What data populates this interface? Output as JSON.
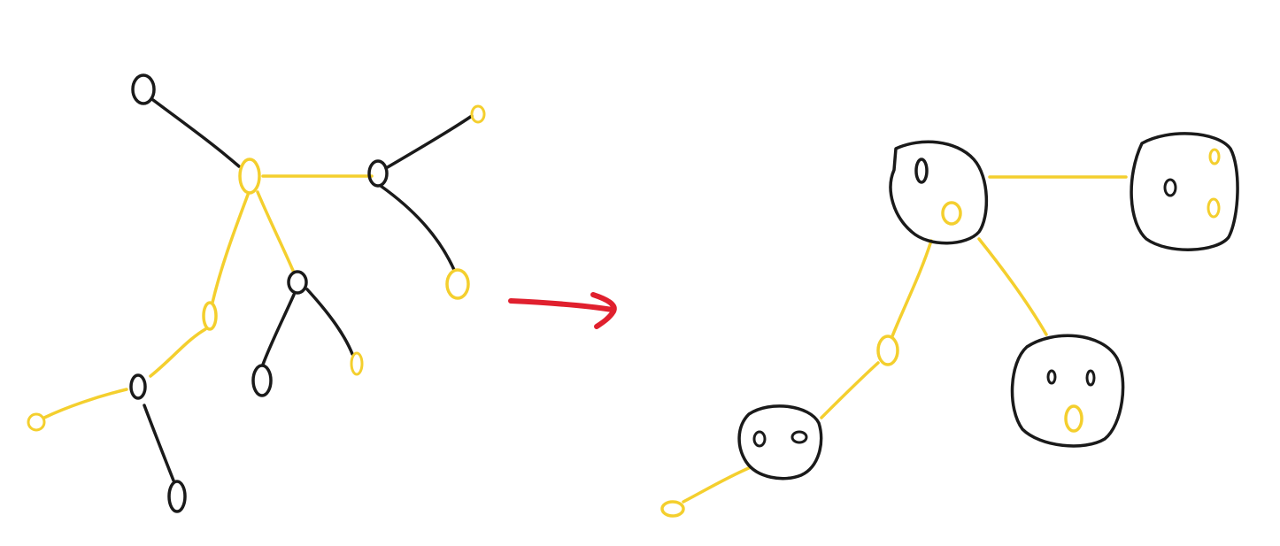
{
  "colors": {
    "background": "#ffffff",
    "black_ink": "#1a1a1a",
    "yellow_ink": "#f4cf2e",
    "arrow_red": "#e0202e"
  },
  "diagram": {
    "description_free": true,
    "left_tree": {
      "nodes": [
        {
          "id": "a",
          "color": "black"
        },
        {
          "id": "root",
          "color": "yellow"
        },
        {
          "id": "b",
          "color": "black"
        },
        {
          "id": "b_top",
          "color": "yellow"
        },
        {
          "id": "b_bottom",
          "color": "yellow"
        },
        {
          "id": "c",
          "color": "black"
        },
        {
          "id": "c_left",
          "color": "black"
        },
        {
          "id": "c_right",
          "color": "yellow"
        },
        {
          "id": "d",
          "color": "yellow"
        },
        {
          "id": "e",
          "color": "black"
        },
        {
          "id": "e_left",
          "color": "yellow"
        },
        {
          "id": "e_bottom",
          "color": "black"
        }
      ],
      "edges": [
        {
          "from": "a",
          "to": "root",
          "color": "black"
        },
        {
          "from": "root",
          "to": "b",
          "color": "yellow"
        },
        {
          "from": "b",
          "to": "b_top",
          "color": "black"
        },
        {
          "from": "b",
          "to": "b_bottom",
          "color": "black"
        },
        {
          "from": "root",
          "to": "c",
          "color": "yellow"
        },
        {
          "from": "c",
          "to": "c_left",
          "color": "black"
        },
        {
          "from": "c",
          "to": "c_right",
          "color": "black"
        },
        {
          "from": "root",
          "to": "d",
          "color": "yellow"
        },
        {
          "from": "d",
          "to": "e",
          "color": "yellow"
        },
        {
          "from": "e",
          "to": "e_left",
          "color": "yellow"
        },
        {
          "from": "e",
          "to": "e_bottom",
          "color": "black"
        }
      ]
    },
    "right_tree": {
      "clusters": [
        {
          "id": "cluster-top-left",
          "inner": [
            "black",
            "yellow"
          ]
        },
        {
          "id": "cluster-top-right",
          "inner": [
            "black",
            "yellow",
            "yellow"
          ]
        },
        {
          "id": "cluster-bottom-right",
          "inner": [
            "black",
            "black",
            "yellow"
          ]
        },
        {
          "id": "cluster-bottom-left",
          "inner": [
            "black",
            "black"
          ]
        }
      ],
      "standalone_nodes": [
        {
          "id": "mid-yellow",
          "color": "yellow"
        },
        {
          "id": "leaf-yellow",
          "color": "yellow"
        }
      ]
    },
    "arrow": {
      "direction": "right",
      "color": "red"
    }
  }
}
